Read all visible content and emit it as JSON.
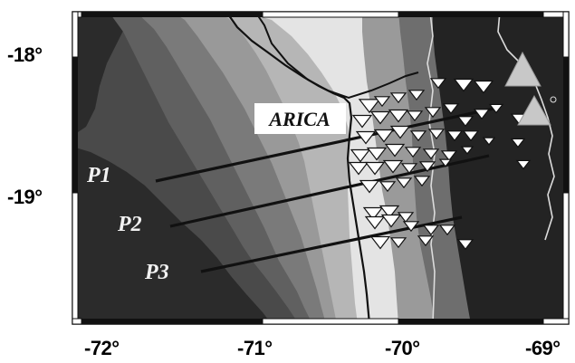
{
  "map": {
    "city_label": "ARICA",
    "profiles": [
      {
        "name": "P1"
      },
      {
        "name": "P2"
      },
      {
        "name": "P3"
      }
    ],
    "colors": {
      "ocean_deep": "#2a2a2a",
      "shelf": "#6a6a6a",
      "coast_plain": "#e6e6e6",
      "andes": "#1e1e1e",
      "station": "#ffffff",
      "volcano": "#c8c8c8"
    }
  },
  "axes": {
    "y_ticks": [
      "-18°",
      "-19°"
    ],
    "x_ticks": [
      "-72°",
      "-71°",
      "-70°",
      "-69°"
    ]
  }
}
